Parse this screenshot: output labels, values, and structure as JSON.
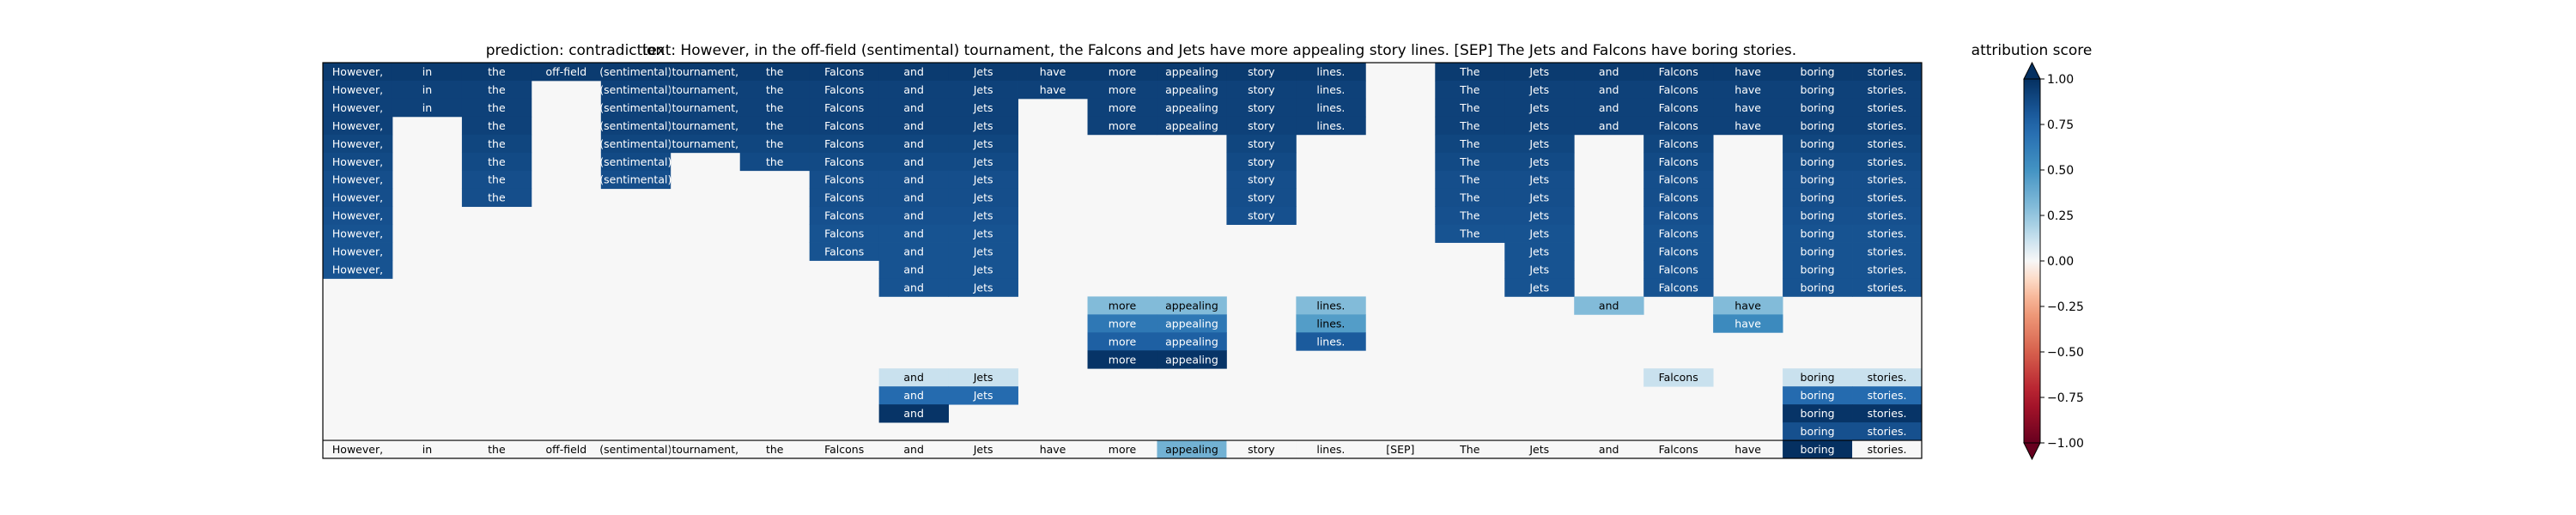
{
  "chart_data": {
    "type": "heatmap",
    "title_prediction": "prediction:  contradiction",
    "title_text": "text:  However, in the off-field (sentimental) tournament, the Falcons and Jets have more appealing story lines. [SEP] The Jets and Falcons have boring stories.",
    "colorbar_title": "attribution score",
    "color_range": [
      -1,
      1
    ],
    "colorbar_ticks": [
      "1.00",
      "0.75",
      "0.50",
      "0.25",
      "0.00",
      "−0.25",
      "−0.50",
      "−0.75",
      "−1.00"
    ],
    "colorbar_tick_values": [
      1,
      0.75,
      0.5,
      0.25,
      0,
      -0.25,
      -0.5,
      -0.75,
      -1
    ],
    "tokens": [
      "However,",
      "in",
      "the",
      "off-field",
      "(sentimental)",
      "tournament,",
      "the",
      "Falcons",
      "and",
      "Jets",
      "have",
      "more",
      "appealing",
      "story",
      "lines.",
      "[SEP]",
      "The",
      "Jets",
      "and",
      "Falcons",
      "have",
      "boring",
      "stories."
    ],
    "rows": [
      [
        0.95,
        0.95,
        0.95,
        0.95,
        0.95,
        0.95,
        0.95,
        0.95,
        0.95,
        0.95,
        0.95,
        0.95,
        0.95,
        0.95,
        0.95,
        null,
        0.95,
        0.95,
        0.95,
        0.95,
        0.95,
        0.95,
        0.95
      ],
      [
        0.92,
        0.92,
        0.92,
        null,
        0.92,
        0.92,
        0.92,
        0.92,
        0.92,
        0.92,
        0.92,
        0.92,
        0.92,
        0.92,
        0.92,
        null,
        0.92,
        0.92,
        0.92,
        0.92,
        0.92,
        0.92,
        0.92
      ],
      [
        0.92,
        0.92,
        0.92,
        null,
        0.92,
        0.92,
        0.92,
        0.92,
        0.92,
        0.92,
        null,
        0.92,
        0.92,
        0.92,
        0.92,
        null,
        0.92,
        0.92,
        0.92,
        0.92,
        0.92,
        0.92,
        0.92
      ],
      [
        0.92,
        null,
        0.92,
        null,
        0.92,
        0.92,
        0.92,
        0.92,
        0.92,
        0.92,
        null,
        0.92,
        0.92,
        0.92,
        0.92,
        null,
        0.92,
        0.92,
        0.92,
        0.92,
        0.92,
        0.92,
        0.92
      ],
      [
        0.9,
        null,
        0.9,
        null,
        0.9,
        0.9,
        0.9,
        0.9,
        0.9,
        0.9,
        null,
        null,
        null,
        0.9,
        null,
        null,
        0.9,
        0.9,
        null,
        0.9,
        null,
        0.9,
        0.9
      ],
      [
        0.88,
        null,
        0.88,
        null,
        0.88,
        null,
        0.88,
        0.88,
        0.88,
        0.88,
        null,
        null,
        null,
        0.88,
        null,
        null,
        0.88,
        0.88,
        null,
        0.88,
        null,
        0.88,
        0.88
      ],
      [
        0.86,
        null,
        0.86,
        null,
        0.86,
        null,
        null,
        0.86,
        0.86,
        0.86,
        null,
        null,
        null,
        0.86,
        null,
        null,
        0.86,
        0.86,
        null,
        0.86,
        null,
        0.86,
        0.86
      ],
      [
        0.86,
        null,
        0.86,
        null,
        null,
        null,
        null,
        0.86,
        0.86,
        0.86,
        null,
        null,
        null,
        0.86,
        null,
        null,
        0.86,
        0.86,
        null,
        0.86,
        null,
        0.86,
        0.86
      ],
      [
        0.85,
        null,
        null,
        null,
        null,
        null,
        null,
        0.85,
        0.85,
        0.85,
        null,
        null,
        null,
        0.85,
        null,
        null,
        0.85,
        0.85,
        null,
        0.85,
        null,
        0.85,
        0.85
      ],
      [
        0.84,
        null,
        null,
        null,
        null,
        null,
        null,
        0.84,
        0.84,
        0.84,
        null,
        null,
        null,
        null,
        null,
        null,
        0.84,
        0.84,
        null,
        0.84,
        null,
        0.84,
        0.84
      ],
      [
        0.84,
        null,
        null,
        null,
        null,
        null,
        null,
        0.84,
        0.84,
        0.84,
        null,
        null,
        null,
        null,
        null,
        null,
        null,
        0.84,
        null,
        0.84,
        null,
        0.84,
        0.84
      ],
      [
        0.84,
        null,
        null,
        null,
        null,
        null,
        null,
        null,
        0.84,
        0.84,
        null,
        null,
        null,
        null,
        null,
        null,
        null,
        0.84,
        null,
        0.84,
        null,
        0.84,
        0.84
      ],
      [
        null,
        null,
        null,
        null,
        null,
        null,
        null,
        null,
        0.84,
        0.84,
        null,
        null,
        null,
        null,
        null,
        null,
        null,
        0.84,
        null,
        0.84,
        null,
        0.84,
        0.84
      ],
      [
        null,
        null,
        null,
        null,
        null,
        null,
        null,
        null,
        null,
        null,
        null,
        0.3,
        0.3,
        null,
        0.3,
        null,
        null,
        null,
        0.3,
        null,
        0.3,
        null,
        null
      ],
      [
        null,
        null,
        null,
        null,
        null,
        null,
        null,
        null,
        null,
        null,
        null,
        0.65,
        0.65,
        null,
        0.45,
        null,
        null,
        null,
        null,
        null,
        0.55,
        null,
        null
      ],
      [
        null,
        null,
        null,
        null,
        null,
        null,
        null,
        null,
        null,
        null,
        null,
        0.78,
        0.78,
        null,
        0.8,
        null,
        null,
        null,
        null,
        null,
        null,
        null,
        null
      ],
      [
        null,
        null,
        null,
        null,
        null,
        null,
        null,
        null,
        null,
        null,
        null,
        0.98,
        0.98,
        null,
        null,
        null,
        null,
        null,
        null,
        null,
        null,
        null,
        null
      ],
      [
        null,
        null,
        null,
        null,
        null,
        null,
        null,
        null,
        0.12,
        0.12,
        null,
        null,
        null,
        null,
        null,
        null,
        null,
        null,
        null,
        0.12,
        null,
        0.12,
        0.12
      ],
      [
        null,
        null,
        null,
        null,
        null,
        null,
        null,
        null,
        0.72,
        0.72,
        null,
        null,
        null,
        null,
        null,
        null,
        null,
        null,
        null,
        null,
        null,
        0.72,
        0.72
      ],
      [
        null,
        null,
        null,
        null,
        null,
        null,
        null,
        null,
        0.98,
        null,
        null,
        null,
        null,
        null,
        null,
        null,
        null,
        null,
        null,
        null,
        null,
        0.98,
        0.98
      ],
      [
        null,
        null,
        null,
        null,
        null,
        null,
        null,
        null,
        null,
        null,
        null,
        null,
        null,
        null,
        null,
        null,
        null,
        null,
        null,
        null,
        null,
        0.85,
        0.85
      ]
    ],
    "bottom_row": [
      0.0,
      0.0,
      0.0,
      0.0,
      0.0,
      0.0,
      0.0,
      0.0,
      0.0,
      0.0,
      0.0,
      0.0,
      0.35,
      0.0,
      0.0,
      0.0,
      0.0,
      0.0,
      0.0,
      0.0,
      0.0,
      1.0,
      0.0
    ]
  }
}
